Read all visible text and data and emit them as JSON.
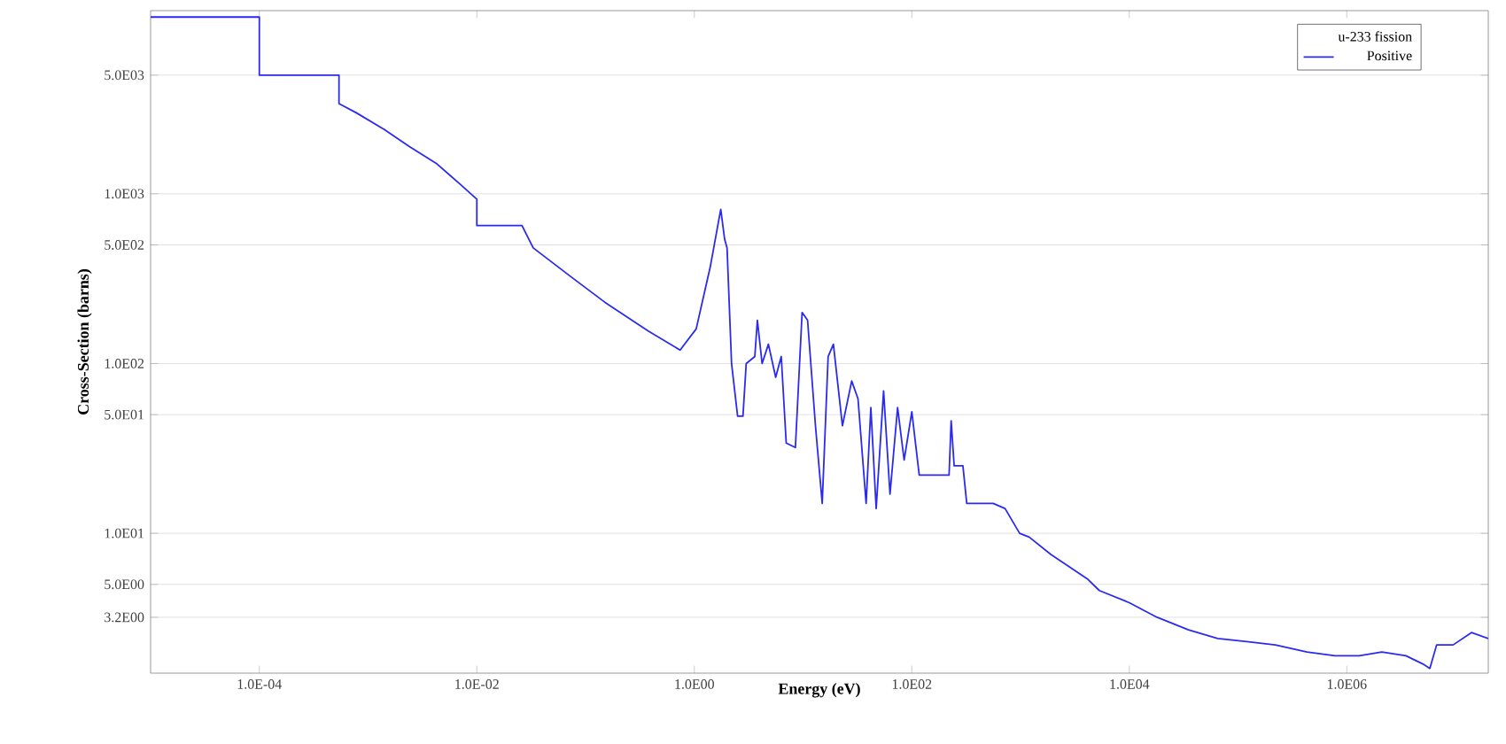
{
  "chart_data": {
    "type": "line",
    "xlabel": "Energy (eV)",
    "ylabel": "Cross-Section (barns)",
    "legend_title": "u-233 fission",
    "log": "xy",
    "grid": "y",
    "legend": "top right",
    "xlim": [
      1e-05,
      20000000.0
    ],
    "ylim": [
      1.5,
      12000
    ],
    "xticks": [
      {
        "value": 0.0001,
        "label": "1.0E-04"
      },
      {
        "value": 0.01,
        "label": "1.0E-02"
      },
      {
        "value": 1,
        "label": "1.0E00"
      },
      {
        "value": 100,
        "label": "1.0E02"
      },
      {
        "value": 10000,
        "label": "1.0E04"
      },
      {
        "value": 1000000,
        "label": "1.0E06"
      }
    ],
    "yticks": [
      {
        "value": 3.2,
        "label": "3.2E00"
      },
      {
        "value": 5,
        "label": "5.0E00"
      },
      {
        "value": 10,
        "label": "1.0E01"
      },
      {
        "value": 50,
        "label": "5.0E01"
      },
      {
        "value": 100,
        "label": "1.0E02"
      },
      {
        "value": 500,
        "label": "5.0E02"
      },
      {
        "value": 1000,
        "label": "1.0E03"
      },
      {
        "value": 5000,
        "label": "5.0E03"
      }
    ],
    "series": [
      {
        "name": "Positive",
        "color": "#2a2af0",
        "line_style": "solid",
        "x": [
          1e-05,
          0.0001,
          0.0001,
          0.00054,
          0.00054,
          0.00078,
          0.0014,
          0.0024,
          0.0043,
          0.0069,
          0.01,
          0.01,
          0.026,
          0.033,
          0.071,
          0.15,
          0.38,
          0.74,
          1.04,
          1.4,
          1.75,
          1.9,
          2.0,
          2.2,
          2.5,
          2.8,
          3.0,
          3.6,
          3.8,
          4.2,
          4.8,
          5.6,
          6.3,
          7.0,
          8.5,
          9.8,
          11,
          13,
          15,
          17,
          19,
          23,
          28,
          32,
          38,
          42,
          47,
          55,
          63,
          74,
          85,
          100,
          117,
          220,
          230,
          245,
          295,
          320,
          560,
          720,
          980,
          1200,
          1900,
          4100,
          5300,
          10000,
          18000,
          35000,
          65000,
          120000,
          220000,
          430000,
          780000,
          1300000,
          2100000,
          3500000,
          5000000,
          5800000,
          6700000,
          9500000,
          14000000,
          20000000
        ],
        "values": [
          11000,
          11000,
          5000,
          5000,
          3400,
          3000,
          2400,
          1900,
          1500,
          1150,
          930,
          650,
          650,
          480,
          330,
          230,
          155,
          120,
          160,
          370,
          810,
          540,
          480,
          100,
          49,
          49,
          100,
          110,
          180,
          100,
          130,
          83,
          110,
          34,
          32,
          200,
          180,
          43,
          15,
          110,
          130,
          43,
          79,
          62,
          15,
          55,
          14,
          69,
          17,
          55,
          27,
          52,
          22,
          22,
          46,
          25,
          25,
          15,
          15,
          14,
          10,
          9.5,
          7.5,
          5.4,
          4.6,
          3.9,
          3.2,
          2.7,
          2.4,
          2.3,
          2.2,
          2.0,
          1.9,
          1.9,
          2.0,
          1.9,
          1.7,
          1.6,
          2.2,
          2.2,
          2.6,
          2.4
        ]
      }
    ]
  }
}
